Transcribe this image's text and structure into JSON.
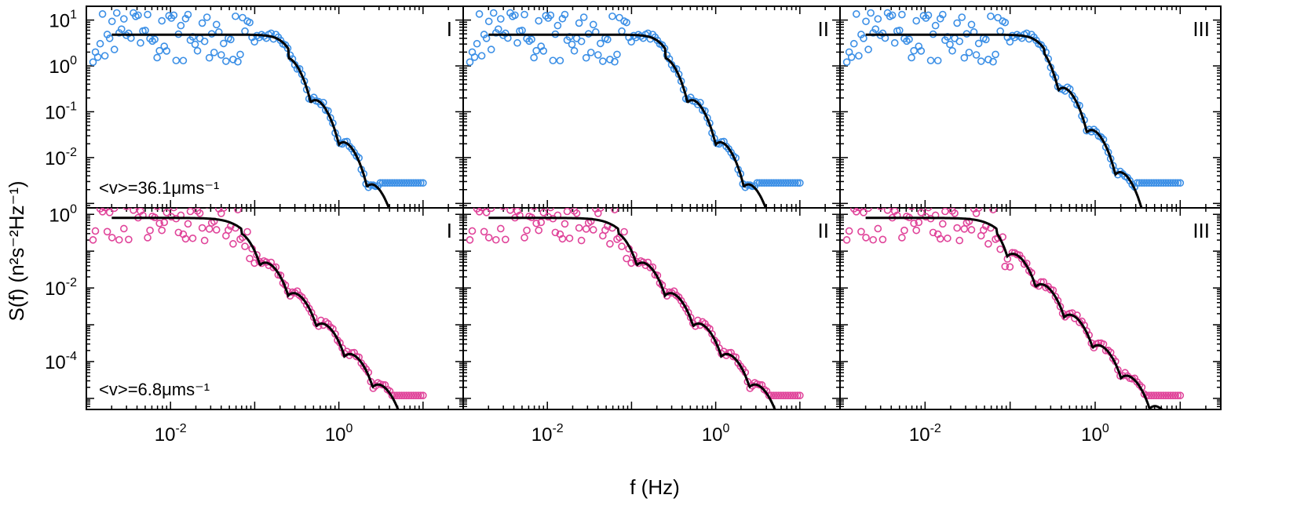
{
  "figure": {
    "ylabel": "S(f) (n²s⁻²Hz⁻¹)",
    "xlabel": "f (Hz)",
    "colors": {
      "top_markers": "#3b8fe6",
      "bottom_markers": "#e0449a",
      "fit_line": "#000000",
      "axes": "#000000"
    }
  },
  "chart_data": [
    {
      "type": "scatter",
      "row": "top",
      "col": 1,
      "panel_label": "I",
      "annotation": "<v>=36.1μms⁻¹",
      "xscale": "log",
      "yscale": "log",
      "xlim": [
        0.001,
        30
      ],
      "ylim": [
        0.0008,
        20
      ],
      "xticks": [
        0.01,
        1
      ],
      "yticks": [
        10,
        1,
        0.1,
        0.01
      ],
      "series": [
        {
          "kind": "markers",
          "marker": "open-circle"
        },
        {
          "kind": "fit-line"
        }
      ]
    },
    {
      "type": "scatter",
      "row": "top",
      "col": 2,
      "panel_label": "II",
      "annotation": "",
      "xscale": "log",
      "yscale": "log",
      "xlim": [
        0.001,
        30
      ],
      "ylim": [
        0.0008,
        20
      ],
      "xticks": [
        0.01,
        1
      ],
      "yticks": [
        10,
        1,
        0.1,
        0.01
      ],
      "series": [
        {
          "kind": "markers",
          "marker": "open-circle"
        },
        {
          "kind": "fit-line"
        }
      ]
    },
    {
      "type": "scatter",
      "row": "top",
      "col": 3,
      "panel_label": "III",
      "annotation": "",
      "xscale": "log",
      "yscale": "log",
      "xlim": [
        0.001,
        30
      ],
      "ylim": [
        0.0008,
        20
      ],
      "xticks": [
        0.01,
        1
      ],
      "yticks": [
        10,
        1,
        0.1,
        0.01
      ],
      "series": [
        {
          "kind": "markers",
          "marker": "open-circle"
        },
        {
          "kind": "fit-line"
        }
      ]
    },
    {
      "type": "scatter",
      "row": "bottom",
      "col": 1,
      "panel_label": "I",
      "annotation": "<v>=6.8μms⁻¹",
      "xscale": "log",
      "yscale": "log",
      "xlim": [
        0.001,
        30
      ],
      "ylim": [
        5e-06,
        1.5
      ],
      "xticks": [
        0.01,
        1
      ],
      "yticks": [
        1,
        0.01,
        0.0001
      ],
      "series": [
        {
          "kind": "markers",
          "marker": "open-circle"
        },
        {
          "kind": "fit-line"
        }
      ]
    },
    {
      "type": "scatter",
      "row": "bottom",
      "col": 2,
      "panel_label": "II",
      "annotation": "",
      "xscale": "log",
      "yscale": "log",
      "xlim": [
        0.001,
        30
      ],
      "ylim": [
        5e-06,
        1.5
      ],
      "xticks": [
        0.01,
        1
      ],
      "yticks": [
        1,
        0.01,
        0.0001
      ],
      "series": [
        {
          "kind": "markers",
          "marker": "open-circle"
        },
        {
          "kind": "fit-line"
        }
      ]
    },
    {
      "type": "scatter",
      "row": "bottom",
      "col": 3,
      "panel_label": "III",
      "annotation": "",
      "xscale": "log",
      "yscale": "log",
      "xlim": [
        0.001,
        30
      ],
      "ylim": [
        5e-06,
        1.5
      ],
      "xticks": [
        0.01,
        1
      ],
      "yticks": [
        1,
        0.01,
        0.0001
      ],
      "series": [
        {
          "kind": "markers",
          "marker": "open-circle"
        },
        {
          "kind": "fit-line"
        }
      ]
    }
  ]
}
